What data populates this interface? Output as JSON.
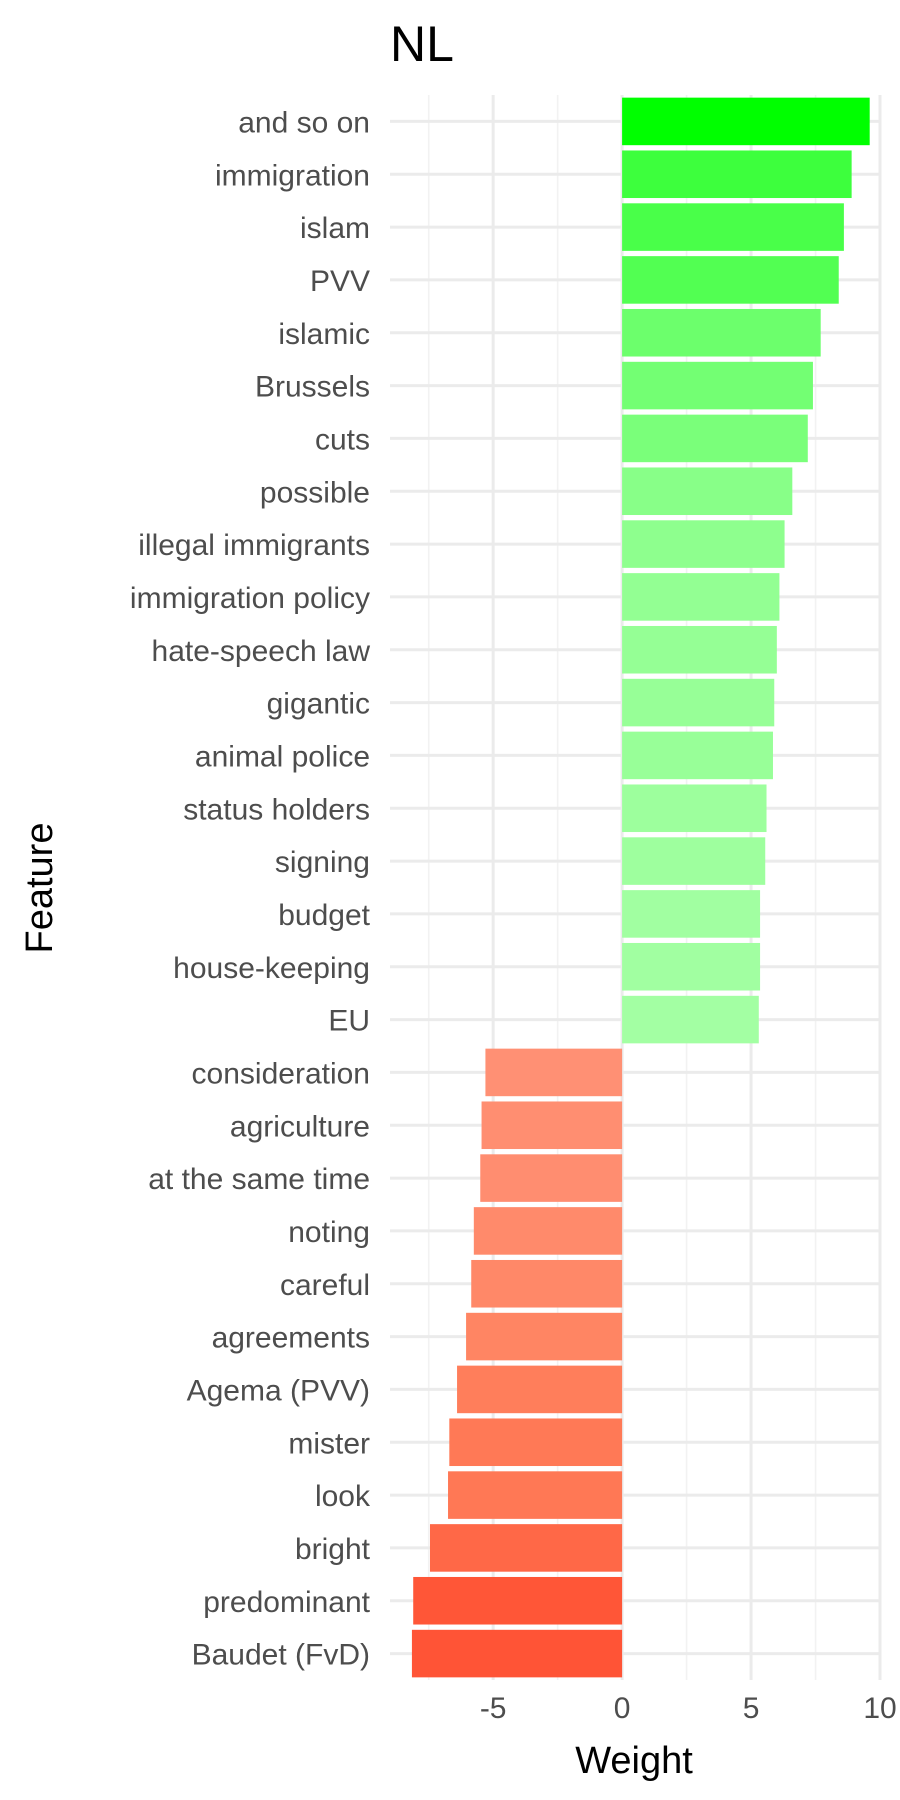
{
  "chart_data": {
    "type": "bar",
    "orientation": "horizontal",
    "title": "NL",
    "xlabel": "Weight",
    "ylabel": "Feature",
    "xlim": [
      -9,
      10
    ],
    "x_ticks": [
      -5,
      0,
      5,
      10
    ],
    "x_tick_labels": [
      "-5",
      "0",
      "5",
      "10"
    ],
    "grid": true,
    "legend": "none",
    "categories": [
      "and so on",
      "immigration",
      "islam",
      "PVV",
      "islamic",
      "Brussels",
      "cuts",
      "possible",
      "illegal immigrants",
      "immigration policy",
      "hate-speech law",
      "gigantic",
      "animal police",
      "status holders",
      "signing",
      "budget",
      "house-keeping",
      "EU",
      "consideration",
      "agriculture",
      "at the same time",
      "noting",
      "careful",
      "agreements",
      "Agema (PVV)",
      "mister",
      "look",
      "bright",
      "predominant",
      "Baudet (FvD)"
    ],
    "values": [
      9.6,
      8.9,
      8.6,
      8.4,
      7.7,
      7.4,
      7.2,
      6.6,
      6.3,
      6.1,
      6.0,
      5.9,
      5.85,
      5.6,
      5.55,
      5.35,
      5.35,
      5.3,
      -5.3,
      -5.45,
      -5.5,
      -5.75,
      -5.85,
      -6.05,
      -6.4,
      -6.7,
      -6.75,
      -7.45,
      -8.1,
      -8.15
    ],
    "colors": [
      "#00ff00",
      "#3dff3d",
      "#49ff49",
      "#52ff52",
      "#6cff6c",
      "#73ff73",
      "#7aff7a",
      "#88ff88",
      "#8eff8e",
      "#93ff93",
      "#95ff95",
      "#97ff97",
      "#98ff98",
      "#9dff9d",
      "#9eff9e",
      "#a1ffa1",
      "#a1ffa1",
      "#a3ffa3",
      "#ff9074",
      "#ff8e71",
      "#ff8d70",
      "#ff8a6b",
      "#ff8868",
      "#ff8563",
      "#ff7e5b",
      "#ff7956",
      "#ff7855",
      "#ff6847",
      "#ff5637",
      "#ff5436"
    ]
  }
}
